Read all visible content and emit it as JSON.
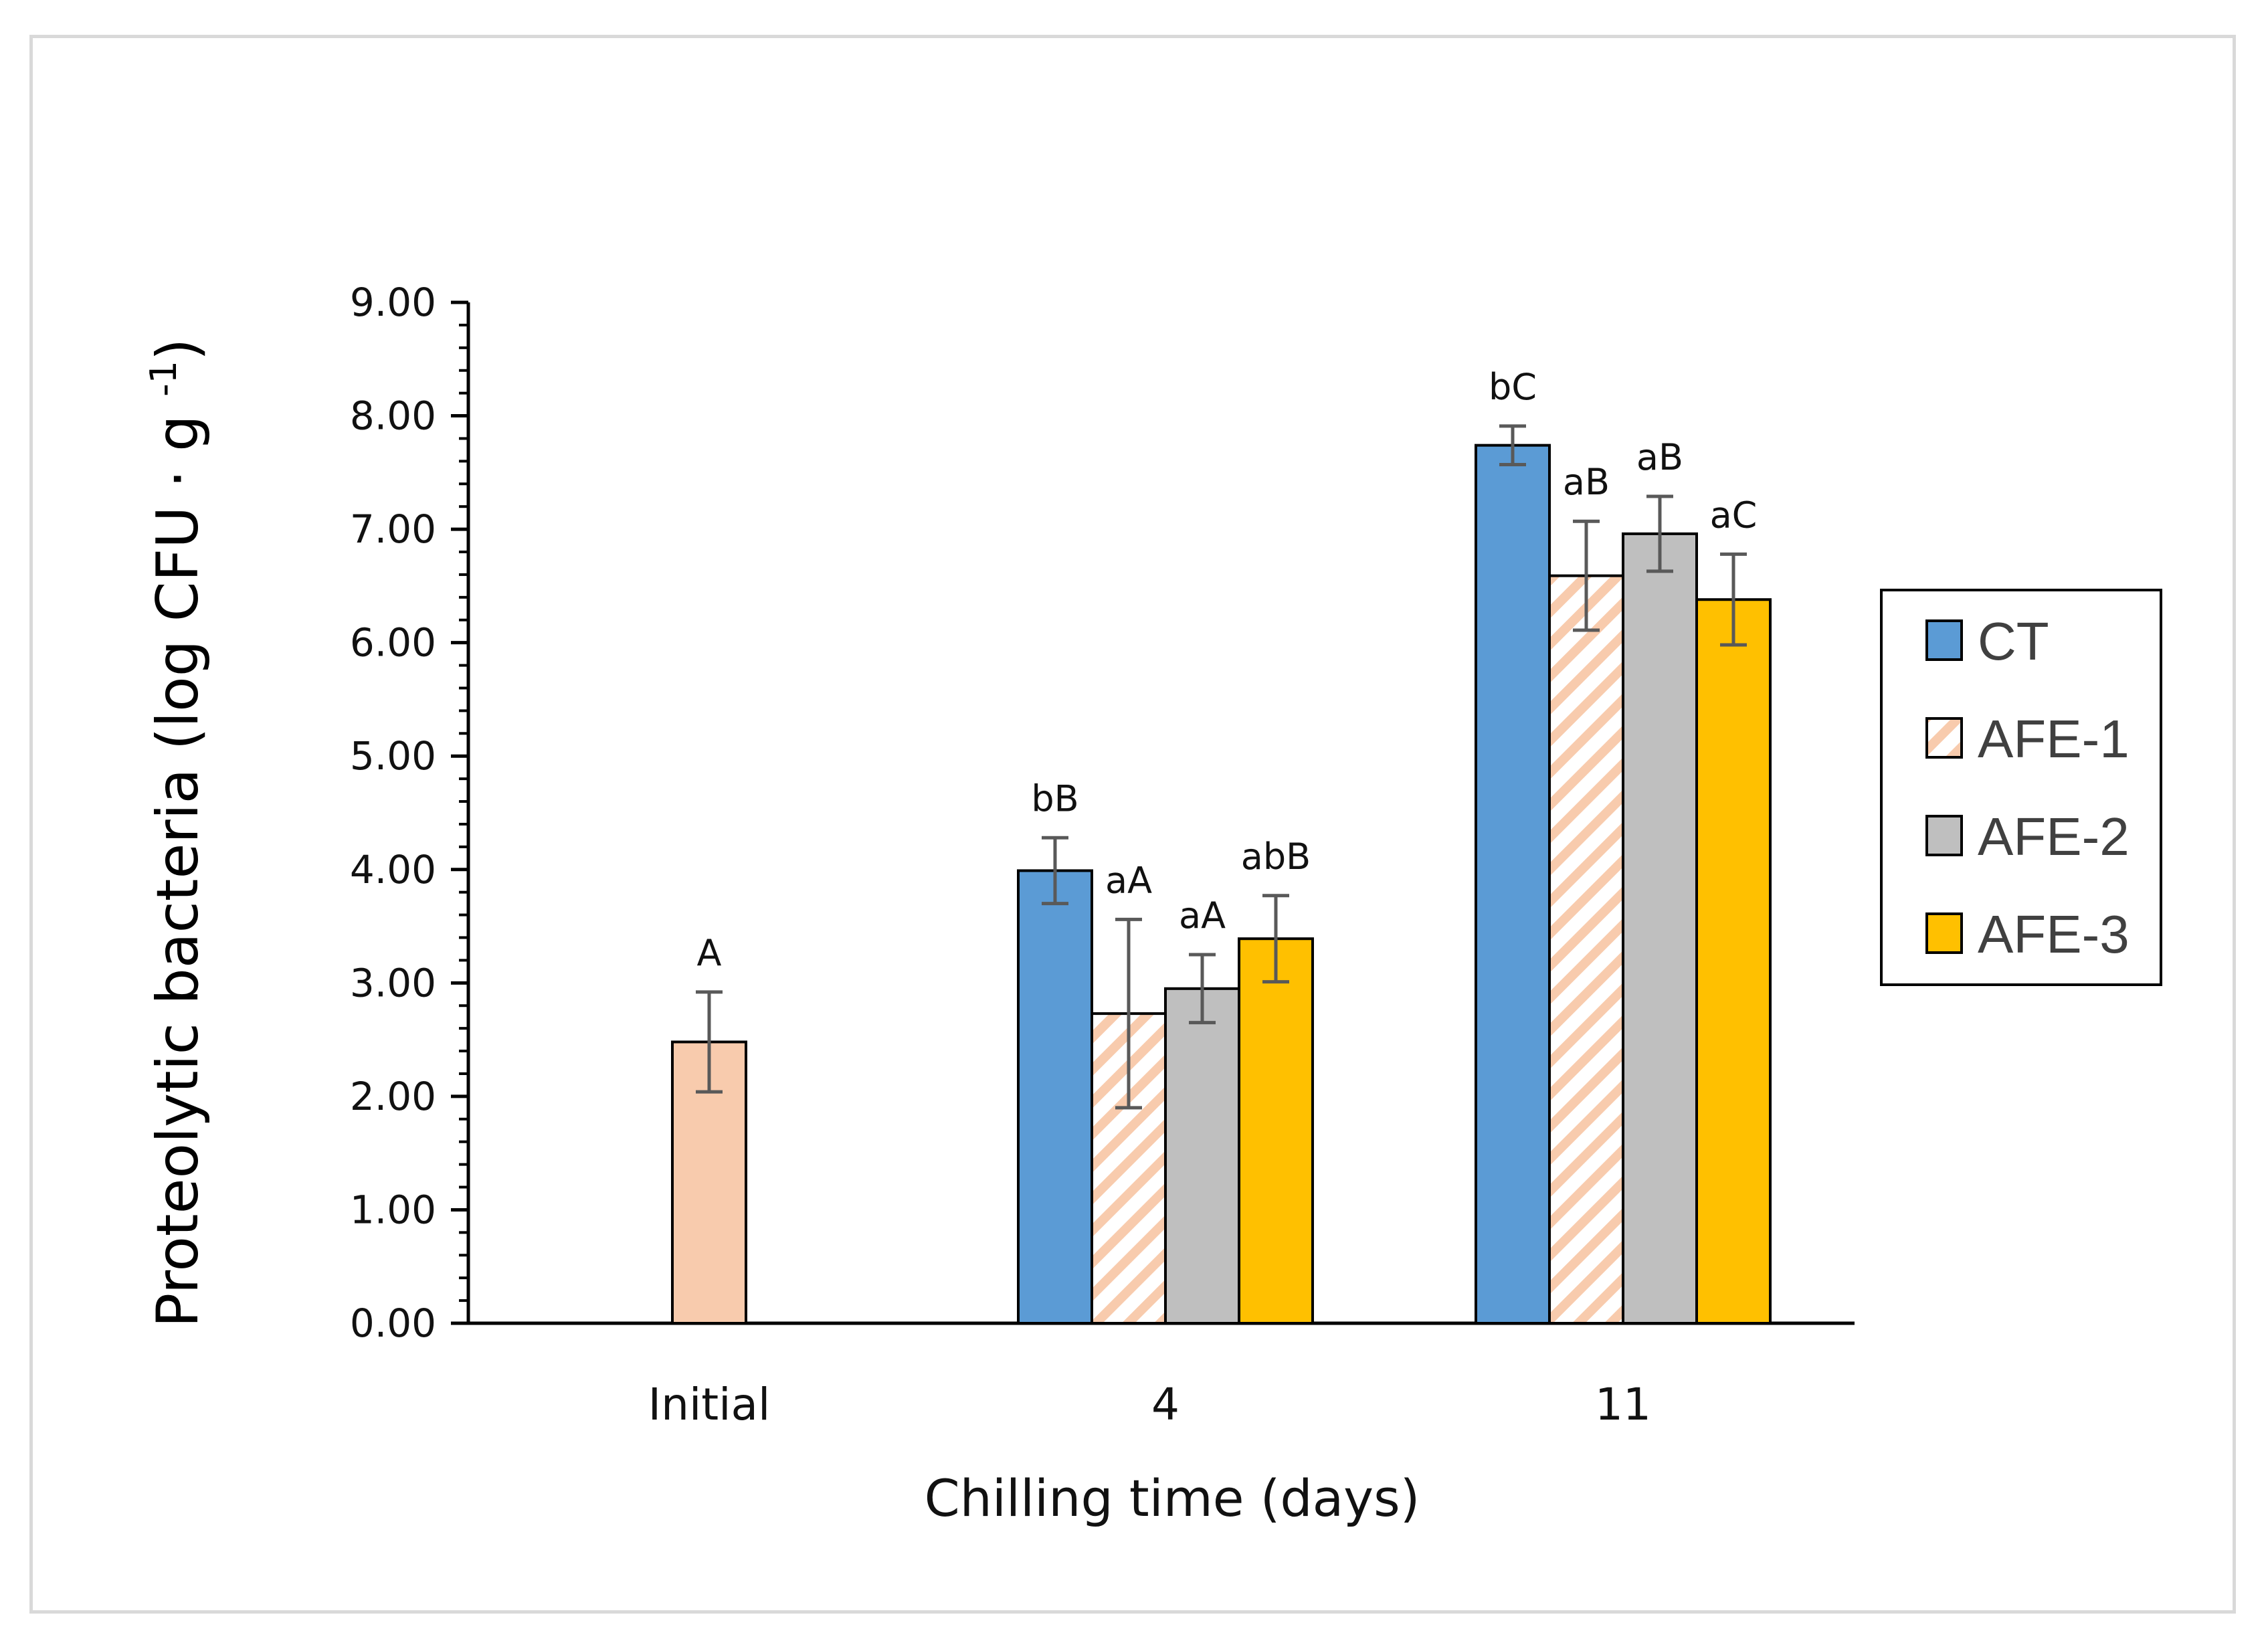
{
  "chart_data": {
    "type": "bar",
    "title": "",
    "xlabel": "Chilling time (days)",
    "ylabel": "Proteolytic  bacteria (log CFU · g ",
    "ylabel_superscript": "-1",
    "ylabel_close": ")",
    "ylim": [
      0,
      9
    ],
    "yticks": [
      0,
      1,
      2,
      3,
      4,
      5,
      6,
      7,
      8,
      9
    ],
    "ytick_labels": [
      "0.00",
      "1.00",
      "2.00",
      "3.00",
      "4.00",
      "5.00",
      "6.00",
      "7.00",
      "8.00",
      "9.00"
    ],
    "categories": [
      "Initial",
      "4",
      "11"
    ],
    "initial": {
      "value": 2.48,
      "error": 0.44,
      "label": "A",
      "color": "#f8cbad"
    },
    "series": [
      {
        "name": "CT",
        "values": [
          null,
          3.99,
          7.74
        ],
        "errors": [
          null,
          0.29,
          0.17
        ],
        "labels": [
          null,
          "bB",
          "bC"
        ],
        "color": "#5b9bd5",
        "pattern": "solid"
      },
      {
        "name": "AFE-1",
        "values": [
          null,
          2.73,
          6.59
        ],
        "errors": [
          null,
          0.83,
          0.48
        ],
        "labels": [
          null,
          "aA",
          "aB"
        ],
        "color": "#f8cbad",
        "pattern": "hatch"
      },
      {
        "name": "AFE-2",
        "values": [
          null,
          2.95,
          6.96
        ],
        "errors": [
          null,
          0.3,
          0.33
        ],
        "labels": [
          null,
          "aA",
          "aB"
        ],
        "color": "#bfbfbf",
        "pattern": "solid"
      },
      {
        "name": "AFE-3",
        "values": [
          null,
          3.39,
          6.38
        ],
        "errors": [
          null,
          0.38,
          0.4
        ],
        "labels": [
          null,
          "abB",
          "aC"
        ],
        "color": "#ffc000",
        "pattern": "solid"
      }
    ],
    "legend": {
      "position": "right",
      "entries": [
        "CT",
        "AFE-1",
        "AFE-2",
        "AFE-3"
      ]
    },
    "grid": false
  }
}
